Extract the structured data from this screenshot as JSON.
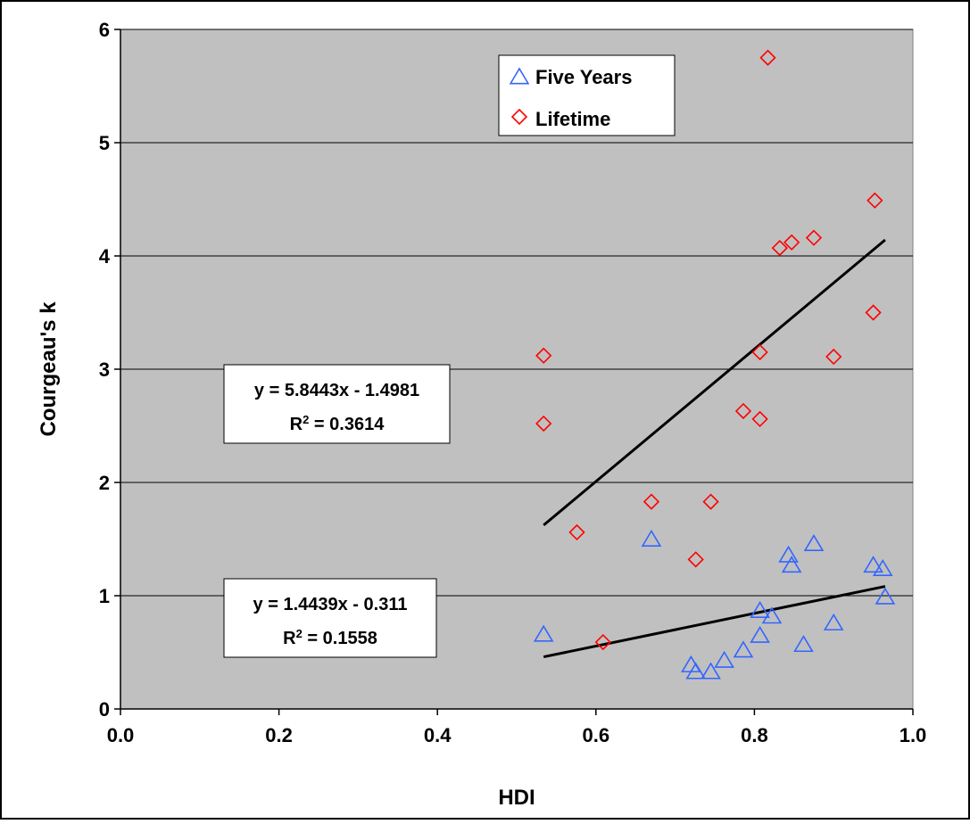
{
  "chart_data": {
    "type": "scatter",
    "xlabel": "HDI",
    "ylabel": "Courgeau's k",
    "xlim": [
      0.0,
      1.0
    ],
    "ylim": [
      0,
      6
    ],
    "x_ticks": [
      "0.0",
      "0.2",
      "0.4",
      "0.6",
      "0.8",
      "1.0"
    ],
    "y_ticks": [
      "0",
      "1",
      "2",
      "3",
      "4",
      "5",
      "6"
    ],
    "grid": "horizontal major gridlines",
    "legend_position": "top-center",
    "colors": {
      "plot_background": "#C0C0C0",
      "five_years": "#3366FF",
      "lifetime": "#FF0000",
      "trendline": "#000000"
    },
    "series": [
      {
        "name": "Five Years",
        "marker": "triangle",
        "points": [
          [
            0.534,
            0.66
          ],
          [
            0.67,
            1.5
          ],
          [
            0.72,
            0.39
          ],
          [
            0.726,
            0.33
          ],
          [
            0.745,
            0.33
          ],
          [
            0.762,
            0.43
          ],
          [
            0.786,
            0.52
          ],
          [
            0.807,
            0.87
          ],
          [
            0.807,
            0.65
          ],
          [
            0.822,
            0.82
          ],
          [
            0.843,
            1.36
          ],
          [
            0.847,
            1.27
          ],
          [
            0.862,
            0.57
          ],
          [
            0.875,
            1.46
          ],
          [
            0.9,
            0.76
          ],
          [
            0.95,
            1.27
          ],
          [
            0.962,
            1.24
          ],
          [
            0.965,
            0.99
          ]
        ],
        "trendline": {
          "equation": "y = 1.4439x - 0.311",
          "r2_label": "R",
          "r2_superscript": "2",
          "r2_value": " = 0.1558",
          "slope": 1.4439,
          "intercept": -0.311,
          "x_range": [
            0.534,
            0.965
          ]
        }
      },
      {
        "name": "Lifetime",
        "marker": "diamond",
        "points": [
          [
            0.534,
            3.12
          ],
          [
            0.534,
            2.52
          ],
          [
            0.576,
            1.56
          ],
          [
            0.609,
            0.59
          ],
          [
            0.67,
            1.83
          ],
          [
            0.726,
            1.32
          ],
          [
            0.745,
            1.83
          ],
          [
            0.786,
            2.63
          ],
          [
            0.807,
            3.15
          ],
          [
            0.807,
            2.56
          ],
          [
            0.817,
            5.75
          ],
          [
            0.832,
            4.07
          ],
          [
            0.847,
            4.12
          ],
          [
            0.875,
            4.16
          ],
          [
            0.9,
            3.11
          ],
          [
            0.95,
            3.5
          ],
          [
            0.952,
            4.49
          ]
        ],
        "trendline": {
          "equation": "y = 5.8443x - 1.4981",
          "r2_label": "R",
          "r2_superscript": "2",
          "r2_value": " = 0.3614",
          "slope": 5.8443,
          "intercept": -1.4981,
          "x_range": [
            0.534,
            0.965
          ]
        }
      }
    ]
  }
}
